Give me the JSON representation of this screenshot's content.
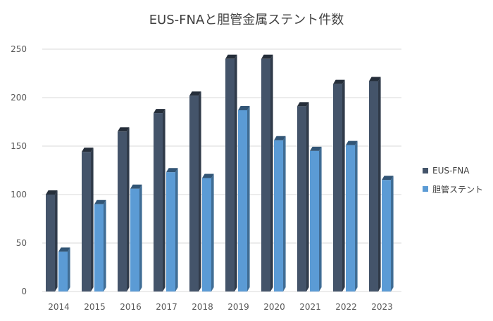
{
  "chart_data": {
    "type": "bar",
    "title": "EUS-FNAと胆管金属ステント件数",
    "categories": [
      "2014",
      "2015",
      "2016",
      "2017",
      "2018",
      "2019",
      "2020",
      "2021",
      "2022",
      "2023"
    ],
    "series": [
      {
        "name": "EUS-FNA",
        "values": [
          100,
          144,
          165,
          184,
          202,
          240,
          240,
          191,
          214,
          217
        ],
        "color": "#44546a"
      },
      {
        "name": "胆管ステント",
        "values": [
          41,
          90,
          106,
          123,
          117,
          187,
          156,
          145,
          151,
          115
        ],
        "color": "#5b9bd5"
      }
    ],
    "y_ticks": [
      0,
      50,
      100,
      150,
      200,
      250
    ],
    "ylim": [
      0,
      250
    ],
    "grid": true,
    "legend_position": "right"
  }
}
